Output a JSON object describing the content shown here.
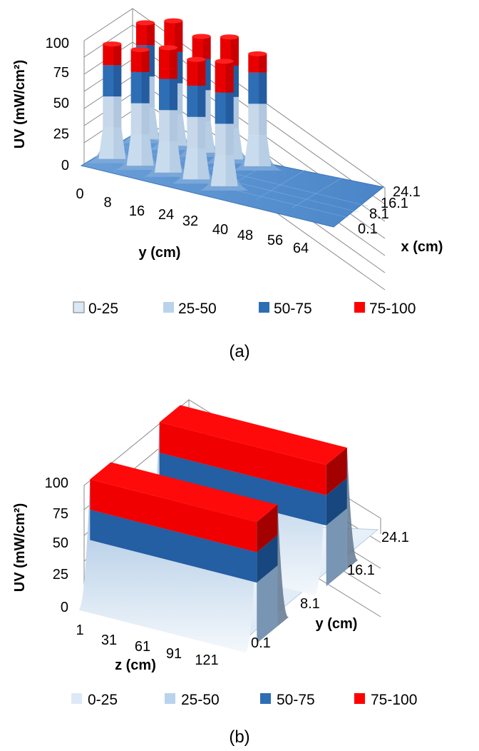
{
  "chart_data": [
    {
      "type": "surface3d",
      "caption": "(a)",
      "zlabel": "UV (mW/cm²)",
      "ylabel": "y (cm)",
      "xlabel": "x (cm)",
      "z_ticks": [
        "0",
        "25",
        "50",
        "75",
        "100"
      ],
      "zlim": [
        0,
        100
      ],
      "y_ticks": [
        "0",
        "8",
        "16",
        "24",
        "32",
        "40",
        "48",
        "56",
        "64"
      ],
      "x_ticks": [
        "0.1",
        "8.1",
        "16.1",
        "24.1"
      ],
      "legend": [
        {
          "label": "0-25",
          "color": "#dbe8f5"
        },
        {
          "label": "25-50",
          "color": "#b9d3ec"
        },
        {
          "label": "50-75",
          "color": "#2e6eb5"
        },
        {
          "label": "75-100",
          "color": "#ff0000"
        }
      ],
      "peaks": [
        {
          "y": 4,
          "x": 24.1,
          "value": 93
        },
        {
          "y": 4,
          "x": 8.1,
          "value": 92
        },
        {
          "y": 12,
          "x": 24.1,
          "value": 100
        },
        {
          "y": 12,
          "x": 8.1,
          "value": 93
        },
        {
          "y": 20,
          "x": 24.1,
          "value": 93
        },
        {
          "y": 20,
          "x": 8.1,
          "value": 100
        },
        {
          "y": 28,
          "x": 24.1,
          "value": 98
        },
        {
          "y": 28,
          "x": 8.1,
          "value": 96
        },
        {
          "y": 36,
          "x": 24.1,
          "value": 90
        },
        {
          "y": 36,
          "x": 8.1,
          "value": 100
        }
      ]
    },
    {
      "type": "surface3d",
      "caption": "(b)",
      "zlabel": "UV (mW/cm²)",
      "xlabel": "z (cm)",
      "ylabel": "y (cm)",
      "z_ticks": [
        "0",
        "25",
        "50",
        "75",
        "100"
      ],
      "zlim": [
        0,
        100
      ],
      "x_ticks": [
        "1",
        "31",
        "61",
        "91",
        "121"
      ],
      "y_ticks": [
        "0.1",
        "8.1",
        "16.1",
        "24.1"
      ],
      "legend": [
        {
          "label": "0-25",
          "color": "#dde9f6"
        },
        {
          "label": "25-50",
          "color": "#b9d3ec"
        },
        {
          "label": "50-75",
          "color": "#2e6eb5"
        },
        {
          "label": "75-100",
          "color": "#ff0000"
        }
      ],
      "ridges": [
        {
          "y": 4.1,
          "value": 100
        },
        {
          "y": 20.1,
          "value": 100
        }
      ]
    }
  ]
}
